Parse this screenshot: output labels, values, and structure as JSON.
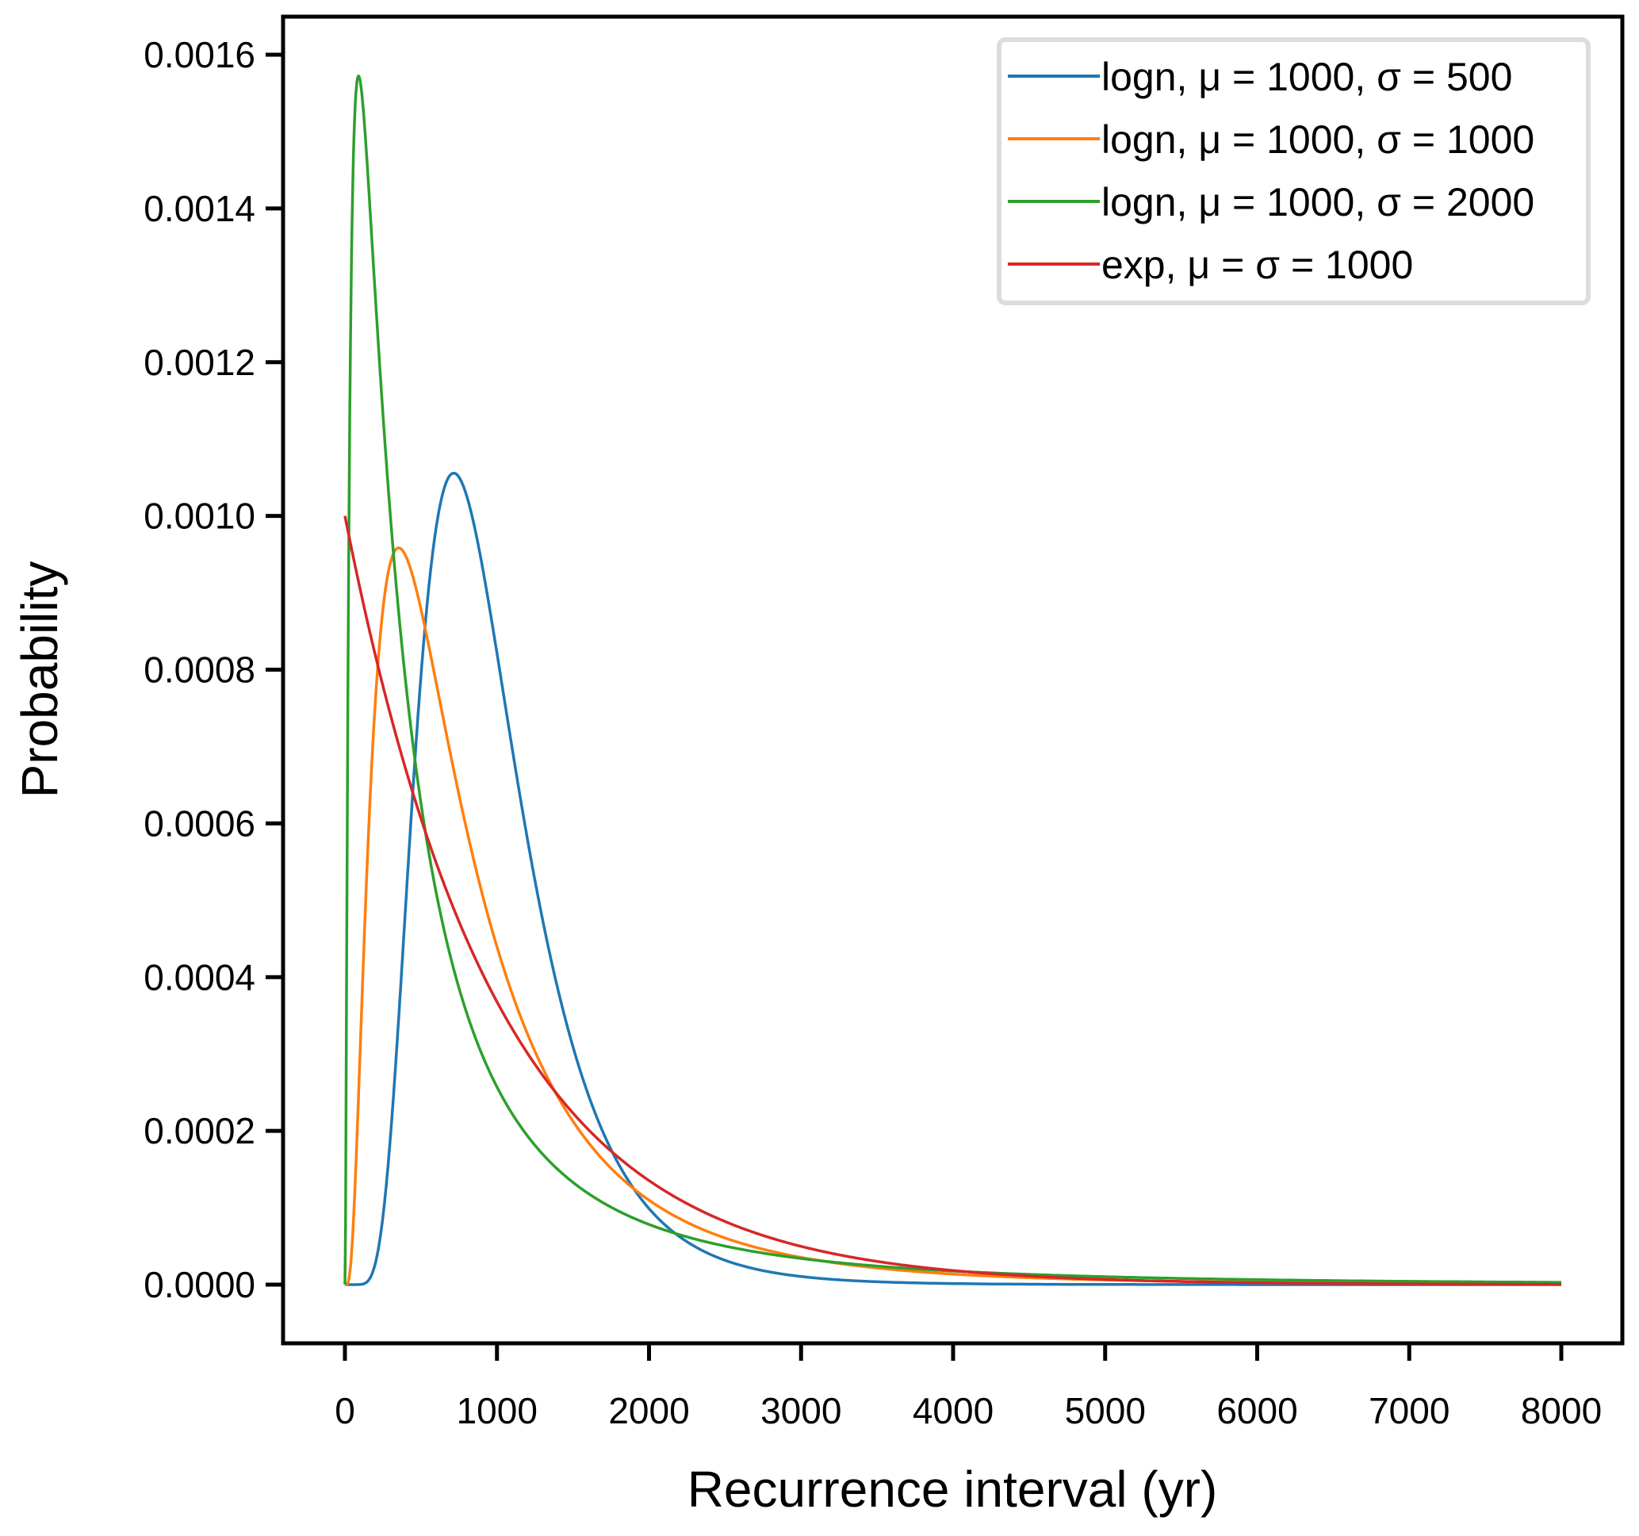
{
  "chart_data": {
    "type": "line",
    "title": "",
    "xlabel": "Recurrence interval (yr)",
    "ylabel": "Probability",
    "xlim": [
      -400,
      8400
    ],
    "ylim": [
      -7e-05,
      0.00165
    ],
    "xticks": [
      0,
      1000,
      2000,
      3000,
      4000,
      5000,
      6000,
      7000,
      8000
    ],
    "xtick_labels": [
      "0",
      "1000",
      "2000",
      "3000",
      "4000",
      "5000",
      "6000",
      "7000",
      "8000"
    ],
    "yticks": [
      0,
      0.0002,
      0.0004,
      0.0006,
      0.0008,
      0.001,
      0.0012,
      0.0014,
      0.0016
    ],
    "ytick_labels": [
      "0.0000",
      "0.0002",
      "0.0004",
      "0.0006",
      "0.0008",
      "0.0010",
      "0.0012",
      "0.0014",
      "0.0016"
    ],
    "grid": false,
    "legend_position": "top-right",
    "x_range": [
      0,
      8000
    ],
    "series": [
      {
        "name": "logn, μ = 1000, σ = 500",
        "dist": "lognormal",
        "mean": 1000,
        "std": 500,
        "color": "#1f77b4",
        "peak_x": 720,
        "peak_y": 0.00106
      },
      {
        "name": "logn, μ = 1000, σ = 1000",
        "dist": "lognormal",
        "mean": 1000,
        "std": 1000,
        "color": "#ff7f0e",
        "peak_x": 350,
        "peak_y": 0.00096
      },
      {
        "name": "logn, μ = 1000, σ = 2000",
        "dist": "lognormal",
        "mean": 1000,
        "std": 2000,
        "color": "#2ca02c",
        "peak_x": 90,
        "peak_y": 0.00157
      },
      {
        "name": "exp, μ = σ = 1000",
        "dist": "exponential",
        "mean": 1000,
        "std": 1000,
        "color": "#d62728",
        "peak_x": 0,
        "peak_y": 0.001
      }
    ]
  }
}
